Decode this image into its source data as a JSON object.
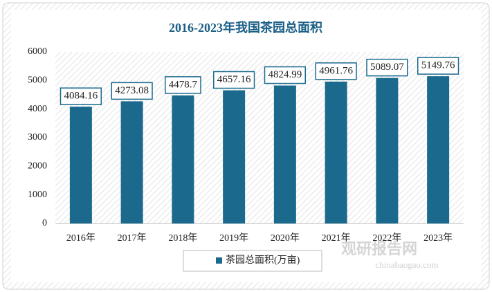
{
  "chart_data": {
    "type": "bar",
    "title": "2016-2023年我国茶园总面积",
    "categories": [
      "2016年",
      "2017年",
      "2018年",
      "2019年",
      "2020年",
      "2021年",
      "2022年",
      "2023年"
    ],
    "series": [
      {
        "name": "茶园总面积(万亩)",
        "color": "#1b6a8d",
        "values": [
          4084.16,
          4273.08,
          4478.7,
          4657.16,
          4824.99,
          4961.76,
          5089.07,
          5149.76
        ]
      }
    ],
    "ylim": [
      0,
      6000
    ],
    "yticks": [
      0,
      1000,
      2000,
      3000,
      4000,
      5000,
      6000
    ],
    "legend": "bottom",
    "watermark": [
      "观研报告网",
      "chinabaogao.com"
    ]
  }
}
